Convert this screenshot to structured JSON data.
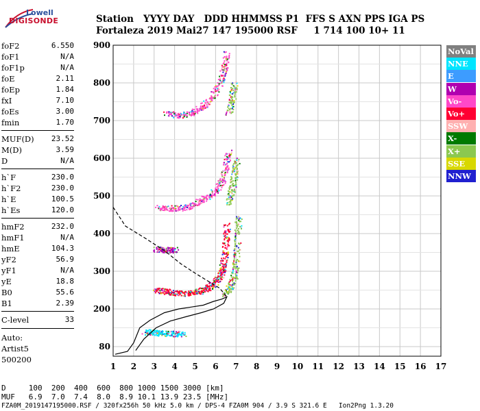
{
  "logo": {
    "top": "Lowell",
    "bottom": "DIGISONDE"
  },
  "header": {
    "line1": "Station   YYYY DAY   DDD HHMMSS P1  FFS S AXN PPS IGA PS",
    "line2": "Fortaleza 2019 Mai27 147 195000 RSF     1 714 100 10+ 11"
  },
  "params": [
    {
      "k": "foF2",
      "v": "6.550"
    },
    {
      "k": "foF1",
      "v": "N/A"
    },
    {
      "k": "foF1p",
      "v": "N/A"
    },
    {
      "k": "foE",
      "v": "2.11"
    },
    {
      "k": "foEp",
      "v": "1.84"
    },
    {
      "k": "fxI",
      "v": "7.10"
    },
    {
      "k": "foEs",
      "v": "3.00"
    },
    {
      "k": "fmin",
      "v": "1.70"
    },
    {
      "k": "MUF(D)",
      "v": "23.52"
    },
    {
      "k": "M(D)",
      "v": "3.59"
    },
    {
      "k": "D",
      "v": "N/A"
    },
    {
      "k": "h`F",
      "v": "230.0"
    },
    {
      "k": "h`F2",
      "v": "230.0"
    },
    {
      "k": "h`E",
      "v": "100.5"
    },
    {
      "k": "h`Es",
      "v": "120.0"
    },
    {
      "k": "hmF2",
      "v": "232.0"
    },
    {
      "k": "hmF1",
      "v": "N/A"
    },
    {
      "k": "hmE",
      "v": "104.3"
    },
    {
      "k": "yF2",
      "v": "56.9"
    },
    {
      "k": "yF1",
      "v": "N/A"
    },
    {
      "k": "yE",
      "v": "18.8"
    },
    {
      "k": "B0",
      "v": "55.6"
    },
    {
      "k": "B1",
      "v": "2.39"
    },
    {
      "k": "C-level",
      "v": "33"
    }
  ],
  "notes": {
    "auto": "Auto:",
    "artist": "Artist5",
    "version": "500200"
  },
  "legend": [
    {
      "label": "NoVal",
      "color": "#808080",
      "text": "#ffffff"
    },
    {
      "label": "NNE",
      "color": "#00e5ff",
      "text": "#ffffff"
    },
    {
      "label": "E",
      "color": "#3d9cff",
      "text": "#ffffff"
    },
    {
      "label": "W",
      "color": "#b000b0",
      "text": "#ffffff"
    },
    {
      "label": "Vo-",
      "color": "#ff48c8",
      "text": "#ffffff"
    },
    {
      "label": "Vo+",
      "color": "#ff0033",
      "text": "#ffffff"
    },
    {
      "label": "SSW",
      "color": "#ffb0b0",
      "text": "#ffffff"
    },
    {
      "label": "X-",
      "color": "#007a00",
      "text": "#ffffff"
    },
    {
      "label": "X+",
      "color": "#8cc850",
      "text": "#ffffff"
    },
    {
      "label": "SSE",
      "color": "#d8d800",
      "text": "#ffffff"
    },
    {
      "label": "NNW",
      "color": "#2020d0",
      "text": "#ffffff"
    }
  ],
  "footer": {
    "line1": "D     100  200  400  600  800 1000 1500 3000 [km]",
    "line2": "MUF   6.9  7.0  7.4  8.0  8.9 10.1 13.9 23.5 [MHz]",
    "line3": "FZA0M_2019147195000.RSF / 320fx256h 50 kHz 5.0 km / DPS-4 FZA0M 904 / 3.9 S 321.6 E   Ion2Png 1.3.20"
  },
  "chart_data": {
    "type": "scatter",
    "xlim": [
      1,
      17
    ],
    "ylim": [
      80,
      900
    ],
    "xticks": [
      1,
      2,
      3,
      4,
      5,
      6,
      7,
      8,
      9,
      10,
      11,
      12,
      13,
      14,
      15,
      16,
      17
    ],
    "yticks": [
      80,
      100,
      200,
      300,
      400,
      500,
      600,
      700,
      800,
      900
    ],
    "ytick_labels": [
      100,
      200,
      300,
      400,
      500,
      600,
      700,
      800,
      900
    ],
    "grid": true,
    "series": [
      {
        "color": "#000000",
        "style": "solid",
        "points": [
          [
            1.1,
            84
          ],
          [
            1.7,
            90
          ],
          [
            2.0,
            110
          ],
          [
            2.3,
            150
          ],
          [
            2.8,
            170
          ],
          [
            3.5,
            190
          ],
          [
            4.2,
            200
          ],
          [
            4.8,
            205
          ],
          [
            5.4,
            210
          ],
          [
            5.9,
            220
          ],
          [
            6.3,
            226
          ],
          [
            6.55,
            232
          ],
          [
            6.4,
            215
          ],
          [
            5.9,
            200
          ],
          [
            5.3,
            190
          ],
          [
            4.6,
            180
          ],
          [
            3.8,
            168
          ],
          [
            3.1,
            150
          ],
          [
            2.5,
            120
          ],
          [
            2.1,
            92
          ]
        ]
      },
      {
        "color": "#000000",
        "style": "dashed",
        "points": [
          [
            1.0,
            470
          ],
          [
            1.6,
            420
          ],
          [
            2.5,
            390
          ],
          [
            3.5,
            355
          ],
          [
            4.3,
            320
          ],
          [
            5.0,
            295
          ],
          [
            5.6,
            275
          ],
          [
            6.2,
            255
          ],
          [
            6.55,
            232
          ]
        ]
      }
    ],
    "traces": [
      {
        "name": "F2 O-trace",
        "color": "#ff0033",
        "points": [
          [
            3.0,
            252
          ],
          [
            3.5,
            248
          ],
          [
            4.0,
            244
          ],
          [
            4.5,
            242
          ],
          [
            5.0,
            245
          ],
          [
            5.4,
            252
          ],
          [
            5.8,
            262
          ],
          [
            6.1,
            280
          ],
          [
            6.3,
            300
          ],
          [
            6.4,
            330
          ],
          [
            6.5,
            380
          ],
          [
            6.55,
            430
          ]
        ]
      },
      {
        "name": "F2 X-trace",
        "color": "#8cc850",
        "points": [
          [
            6.4,
            240
          ],
          [
            6.7,
            260
          ],
          [
            6.9,
            290
          ],
          [
            7.0,
            330
          ],
          [
            7.05,
            400
          ],
          [
            7.1,
            450
          ]
        ]
      },
      {
        "name": "Es",
        "color": "#00e5ff",
        "points": [
          [
            2.5,
            140
          ],
          [
            3.0,
            138
          ],
          [
            3.5,
            136
          ],
          [
            4.0,
            135
          ],
          [
            4.4,
            136
          ]
        ]
      },
      {
        "name": "2-hop Es",
        "color": "#b000b0",
        "points": [
          [
            3.1,
            360
          ],
          [
            3.4,
            358
          ],
          [
            3.8,
            356
          ],
          [
            4.0,
            360
          ]
        ]
      },
      {
        "name": "2-hop F2",
        "color": "#ff48c8",
        "points": [
          [
            3.2,
            470
          ],
          [
            3.8,
            468
          ],
          [
            4.5,
            470
          ],
          [
            5.0,
            480
          ],
          [
            5.5,
            495
          ],
          [
            6.0,
            515
          ],
          [
            6.3,
            540
          ],
          [
            6.5,
            580
          ],
          [
            6.6,
            620
          ]
        ]
      },
      {
        "name": "3-hop F2",
        "color": "#ff48c8",
        "points": [
          [
            3.6,
            720
          ],
          [
            4.2,
            715
          ],
          [
            4.8,
            720
          ],
          [
            5.3,
            735
          ],
          [
            5.8,
            760
          ],
          [
            6.2,
            800
          ],
          [
            6.4,
            840
          ],
          [
            6.5,
            880
          ]
        ]
      },
      {
        "name": "X 2-hop",
        "color": "#8cc850",
        "points": [
          [
            6.6,
            480
          ],
          [
            6.8,
            520
          ],
          [
            6.9,
            560
          ],
          [
            7.0,
            600
          ]
        ]
      },
      {
        "name": "X 3-hop",
        "color": "#8cc850",
        "points": [
          [
            6.6,
            720
          ],
          [
            6.8,
            760
          ],
          [
            6.9,
            800
          ]
        ]
      }
    ]
  }
}
